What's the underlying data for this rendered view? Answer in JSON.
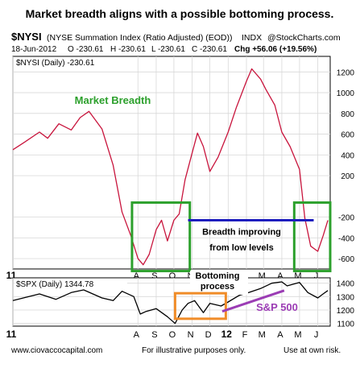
{
  "title": "Market breadth aligns with a possible bottoming process.",
  "symbol": "$NYSI",
  "symbol_desc": "(NYSE Summation Index (Ratio Adjusted) (EOD))",
  "exchange": "INDX",
  "source_mark": "@StockCharts.com",
  "quote_line": {
    "date": "18-Jun-2012",
    "open": "O -230.61",
    "high": "H -230.61",
    "low": "L -230.61",
    "close": "C -230.61",
    "change": "Chg +56.06 (+19.56%)"
  },
  "footer": {
    "left": "www.ciovaccocapital.com",
    "center": "For illustrative purposes only.",
    "right": "Use at own risk."
  },
  "colors": {
    "nysi_line": "#c8143c",
    "price_line": "#000000",
    "green_box": "#2ca02c",
    "orange_box": "#f08c28",
    "blue_line": "#1e1ebe",
    "purple_line": "#9b3cb4",
    "grid": "#d8d8d8"
  },
  "chart_data": [
    {
      "type": "line",
      "series": [
        {
          "name": "$NYSI (Daily) -230.61",
          "x": [
            "2011-01-01",
            "2011-01-20",
            "2011-02-15",
            "2011-03-01",
            "2011-03-20",
            "2011-04-10",
            "2011-04-25",
            "2011-05-10",
            "2011-06-01",
            "2011-06-20",
            "2011-07-05",
            "2011-07-20",
            "2011-08-01",
            "2011-08-10",
            "2011-08-20",
            "2011-09-01",
            "2011-09-10",
            "2011-09-20",
            "2011-10-01",
            "2011-10-10",
            "2011-10-20",
            "2011-11-01",
            "2011-11-10",
            "2011-11-20",
            "2011-12-01",
            "2011-12-15",
            "2012-01-01",
            "2012-01-15",
            "2012-02-01",
            "2012-02-10",
            "2012-02-25",
            "2012-03-05",
            "2012-03-20",
            "2012-04-01",
            "2012-04-15",
            "2012-05-01",
            "2012-05-10",
            "2012-05-20",
            "2012-06-01",
            "2012-06-10",
            "2012-06-18"
          ],
          "values": [
            450,
            520,
            620,
            560,
            700,
            640,
            760,
            820,
            650,
            300,
            -150,
            -380,
            -600,
            -660,
            -560,
            -320,
            -230,
            -430,
            -230,
            -170,
            160,
            420,
            610,
            480,
            240,
            380,
            620,
            860,
            1110,
            1230,
            1130,
            1030,
            880,
            620,
            480,
            260,
            -210,
            -480,
            -530,
            -380,
            -231
          ]
        }
      ],
      "title": "$NYSI (Daily) -230.61",
      "ylim": [
        -700,
        1350
      ],
      "y_ticks": [
        "1200",
        "1000",
        "800",
        "600",
        "400",
        "200",
        "-200",
        "-400",
        "-600"
      ],
      "x_ticks": [
        "11",
        "A",
        "S",
        "O",
        "N",
        "D",
        "12",
        "F",
        "M",
        "A",
        "M",
        "J"
      ],
      "annotations": {
        "label": "Market Breadth",
        "breadth_text_1": "Breadth improving",
        "breadth_text_2": "from low levels"
      }
    },
    {
      "type": "line",
      "series": [
        {
          "name": "$SPX (Daily) 1344.78",
          "x": [
            "2011-01-01",
            "2011-02-15",
            "2011-03-15",
            "2011-04-10",
            "2011-05-01",
            "2011-06-01",
            "2011-06-20",
            "2011-07-05",
            "2011-07-25",
            "2011-08-05",
            "2011-08-15",
            "2011-09-01",
            "2011-09-20",
            "2011-10-03",
            "2011-10-15",
            "2011-10-25",
            "2011-11-05",
            "2011-11-20",
            "2011-12-01",
            "2011-12-20",
            "2012-01-01",
            "2012-01-20",
            "2012-02-05",
            "2012-02-25",
            "2012-03-15",
            "2012-04-01",
            "2012-04-10",
            "2012-05-01",
            "2012-05-15",
            "2012-06-01",
            "2012-06-10",
            "2012-06-18"
          ],
          "values": [
            1270,
            1320,
            1280,
            1330,
            1350,
            1290,
            1270,
            1340,
            1300,
            1170,
            1190,
            1210,
            1150,
            1100,
            1200,
            1250,
            1270,
            1180,
            1250,
            1230,
            1260,
            1310,
            1330,
            1360,
            1400,
            1410,
            1380,
            1405,
            1330,
            1290,
            1320,
            1345
          ]
        }
      ],
      "title": "$SPX (Daily) 1344.78",
      "ylim": [
        1080,
        1440
      ],
      "y_ticks": [
        "1400",
        "1300",
        "1200",
        "1100"
      ],
      "x_ticks": [
        "11",
        "A",
        "S",
        "O",
        "N",
        "D",
        "12",
        "F",
        "M",
        "A",
        "M",
        "J"
      ],
      "annotations": {
        "bottoming_1": "Bottoming",
        "bottoming_2": "process",
        "sp500": "S&P 500"
      }
    }
  ]
}
